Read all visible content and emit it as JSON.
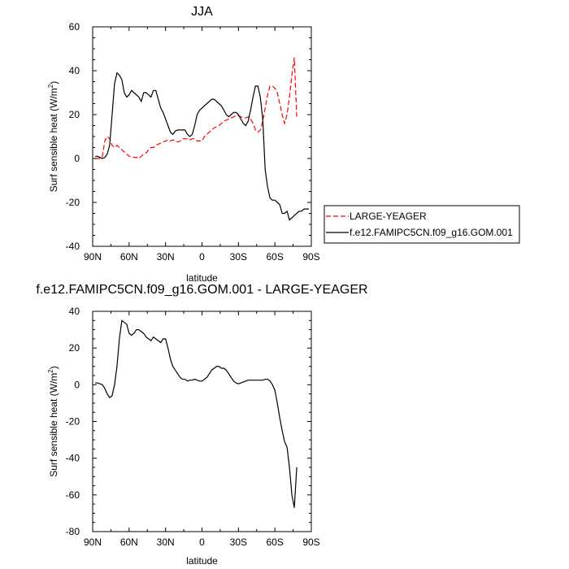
{
  "chart_data": [
    {
      "type": "line",
      "title": "JJA",
      "xlabel": "latitude",
      "ylabel": "Surf sensible heat (W/m²)",
      "ylabel_main": "Surf sensible heat (W/m",
      "ylabel_sup": "2",
      "ylabel_end": ")",
      "xlim": [
        90,
        -90
      ],
      "ylim": [
        -40,
        60
      ],
      "x_ticks": [
        90,
        60,
        30,
        0,
        -30,
        -60,
        -90
      ],
      "x_tick_labels": [
        "90N",
        "60N",
        "30N",
        "0",
        "30S",
        "60S",
        "90S"
      ],
      "y_ticks": [
        -40,
        -20,
        0,
        20,
        40,
        60
      ],
      "y_tick_labels": [
        "-40",
        "-20",
        "0",
        "20",
        "40",
        "60"
      ],
      "grid": false,
      "legend_position": "outside-right",
      "series": [
        {
          "name": "LARGE-YEAGER",
          "color": "#ff0000",
          "dash": "dashed",
          "x": [
            88,
            86,
            84,
            82,
            80,
            78,
            76,
            74,
            72,
            70,
            68,
            66,
            64,
            62,
            60,
            58,
            56,
            54,
            52,
            50,
            48,
            46,
            44,
            42,
            40,
            38,
            36,
            34,
            32,
            30,
            28,
            26,
            24,
            22,
            20,
            18,
            16,
            14,
            12,
            10,
            8,
            6,
            4,
            2,
            0,
            -2,
            -4,
            -6,
            -8,
            -10,
            -12,
            -14,
            -16,
            -18,
            -20,
            -22,
            -24,
            -26,
            -28,
            -30,
            -32,
            -34,
            -36,
            -38,
            -40,
            -42,
            -44,
            -46,
            -48,
            -50,
            -52,
            -54,
            -56,
            -58,
            -60,
            -62,
            -64,
            -66,
            -68,
            -70,
            -72,
            -74,
            -76,
            -78
          ],
          "y": [
            0,
            0,
            0,
            1,
            8,
            10,
            9,
            6,
            5,
            6,
            5,
            4,
            3,
            2,
            1,
            1,
            0.5,
            0.5,
            0,
            1,
            2,
            2.5,
            4,
            5,
            5,
            6,
            6.5,
            7,
            7.5,
            8,
            8.5,
            8,
            8.5,
            8,
            7.5,
            8,
            9,
            9,
            9,
            8.5,
            9,
            9,
            8,
            8,
            8,
            10,
            11,
            12,
            13,
            14,
            14.5,
            15,
            16,
            17,
            17.5,
            18,
            18.5,
            19,
            19.5,
            19.5,
            19,
            18.5,
            18.5,
            19,
            18,
            16,
            13,
            12,
            13,
            17,
            23,
            29,
            33,
            33,
            32,
            30,
            25,
            20,
            16,
            20,
            28,
            38,
            46,
            19
          ]
        },
        {
          "name": "f.e12.FAMIPC5CN.f09_g16.GOM.001",
          "color": "#000000",
          "dash": "solid",
          "x": [
            88,
            86,
            84,
            82,
            80,
            78,
            76,
            74,
            72,
            70,
            68,
            66,
            64,
            62,
            60,
            58,
            56,
            54,
            52,
            50,
            48,
            46,
            44,
            42,
            40,
            38,
            36,
            34,
            32,
            30,
            28,
            26,
            24,
            22,
            20,
            18,
            16,
            14,
            12,
            10,
            8,
            6,
            4,
            2,
            0,
            -2,
            -4,
            -6,
            -8,
            -10,
            -12,
            -14,
            -16,
            -18,
            -20,
            -22,
            -24,
            -26,
            -28,
            -30,
            -32,
            -34,
            -36,
            -38,
            -40,
            -42,
            -44,
            -46,
            -48,
            -50,
            -52,
            -54,
            -56,
            -58,
            -60,
            -62,
            -64,
            -66,
            -68,
            -70,
            -72,
            -74,
            -76,
            -78,
            -80,
            -82,
            -84,
            -86,
            -88
          ],
          "y": [
            1,
            1,
            0.5,
            0,
            0.5,
            2,
            6,
            20,
            34,
            39,
            38,
            36,
            30,
            28,
            29,
            31,
            30,
            29,
            28,
            26,
            30,
            30,
            29,
            28,
            31,
            31,
            27,
            23,
            21,
            18,
            15,
            12,
            11,
            12.5,
            13,
            13,
            13,
            13,
            11,
            10,
            11,
            15,
            20,
            22,
            23,
            24,
            25,
            26,
            27,
            27,
            26,
            25,
            24,
            22,
            20,
            19,
            20,
            21,
            21,
            20,
            18,
            16,
            15,
            17,
            22,
            28,
            33,
            33,
            28,
            18,
            -5,
            -13,
            -18,
            -19,
            -19,
            -20,
            -21,
            -25,
            -25,
            -24,
            -28,
            -27,
            -26,
            -25,
            -24,
            -24,
            -23,
            -23,
            -23
          ]
        }
      ]
    },
    {
      "type": "line",
      "title": "f.e12.FAMIPC5CN.f09_g16.GOM.001 - LARGE-YEAGER",
      "xlabel": "latitude",
      "ylabel": "Surf sensible heat (W/m²)",
      "ylabel_main": "Surf sensible heat (W/m",
      "ylabel_sup": "2",
      "ylabel_end": ")",
      "xlim": [
        90,
        -90
      ],
      "ylim": [
        -80,
        40
      ],
      "x_ticks": [
        90,
        60,
        30,
        0,
        -30,
        -60,
        -90
      ],
      "x_tick_labels": [
        "90N",
        "60N",
        "30N",
        "0",
        "30S",
        "60S",
        "90S"
      ],
      "y_ticks": [
        -80,
        -60,
        -40,
        -20,
        0,
        20,
        40
      ],
      "y_tick_labels": [
        "-80",
        "-60",
        "-40",
        "-20",
        "0",
        "20",
        "40"
      ],
      "grid": false,
      "series": [
        {
          "color": "#000000",
          "dash": "solid",
          "x": [
            88,
            86,
            84,
            82,
            80,
            78,
            76,
            74,
            72,
            70,
            68,
            66,
            64,
            62,
            60,
            58,
            56,
            54,
            52,
            50,
            48,
            46,
            44,
            42,
            40,
            38,
            36,
            34,
            32,
            30,
            28,
            26,
            24,
            22,
            20,
            18,
            16,
            14,
            12,
            10,
            8,
            6,
            4,
            2,
            0,
            -2,
            -4,
            -6,
            -8,
            -10,
            -12,
            -14,
            -16,
            -18,
            -20,
            -22,
            -24,
            -26,
            -28,
            -30,
            -32,
            -34,
            -36,
            -38,
            -40,
            -42,
            -44,
            -46,
            -48,
            -50,
            -52,
            -54,
            -56,
            -58,
            -60,
            -62,
            -64,
            -66,
            -68,
            -70,
            -72,
            -74,
            -76,
            -78
          ],
          "y": [
            1,
            1,
            0.5,
            0,
            -2,
            -5,
            -7,
            -6,
            0,
            10,
            25,
            35,
            34,
            33,
            28,
            27,
            28,
            30,
            30,
            29,
            28,
            26,
            25,
            24,
            26,
            25,
            24,
            23,
            25,
            25,
            20,
            14,
            10,
            8,
            6,
            4,
            3,
            3,
            2,
            2.5,
            2.5,
            3,
            2.5,
            2,
            2,
            3,
            4,
            6,
            8,
            9,
            10,
            10,
            9,
            9,
            8,
            6,
            4,
            2,
            1,
            0.5,
            1,
            1.5,
            2,
            2.5,
            2.5,
            2.5,
            2.5,
            2.5,
            2.5,
            2.5,
            3,
            3,
            2,
            0,
            -3,
            -10,
            -18,
            -25,
            -31,
            -34,
            -45,
            -60,
            -67,
            -45
          ]
        }
      ]
    }
  ]
}
